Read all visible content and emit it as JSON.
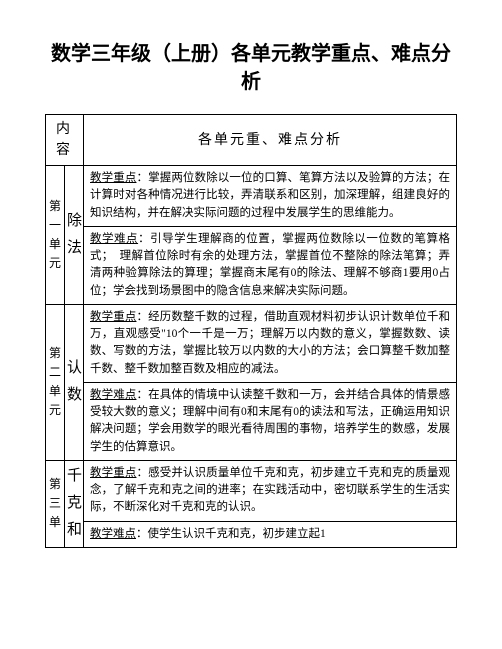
{
  "title": "数学三年级（上册）各单元教学重点、难点分析",
  "header": {
    "col1": "内 容",
    "col2": "各单元重、难点分析"
  },
  "rows": [
    {
      "unit": "第一单元",
      "name": "除法",
      "keypoint_label": "教学重点",
      "keypoint": "：掌握两位数除以一位的口算、笔算方法以及验算的方法；在计算时对各种情况进行比较，弄清联系和区别，加深理解，组建良好的知识结构，并在解决实际问题的过程中发展学生的思维能力。",
      "difficulty_label": "教学难点",
      "difficulty": "：引导学生理解商的位置，掌握两位数除以一位数的笔算格式；　理解首位除时有余的处理方法，掌握首位不整除的除法笔算；弄清两种验算除法的算理；掌握商末尾有0的除法、理解不够商1要用0占位；学会找到场景图中的隐含信息来解决实际问题。"
    },
    {
      "unit": "第二单元",
      "name": "认数",
      "keypoint_label": "教学重点",
      "keypoint": "：经历数整千数的过程，借助直观材料初步认识计数单位千和万，直观感受\"10个一千是一万；理解万以内数的意义，掌握数数、读数、写数的方法，掌握比较万以内数的大小的方法；会口算整千数加整千数、整千数加整百数及相应的减法。",
      "difficulty_label": "教学难点",
      "difficulty": "：在具体的情境中认读整千数和一万，会并结合具体的情景感受较大数的意义；理解中间有0和末尾有0的读法和写法，正确运用知识解决问题；学会用数学的眼光看待周围的事物，培养学生的数感，发展学生的估算意识。"
    },
    {
      "unit": "第三单",
      "name": "千克和",
      "keypoint_label": "教学重点",
      "keypoint": "：感受并认识质量单位千克和克，初步建立千克和克的质量观念，了解千克和克之间的进率；在实践活动中，密切联系学生的生活实际，不断深化对千克和克的认识。",
      "difficulty_label": "教学难点",
      "difficulty": "：使学生认识千克和克，初步建立起1"
    }
  ]
}
